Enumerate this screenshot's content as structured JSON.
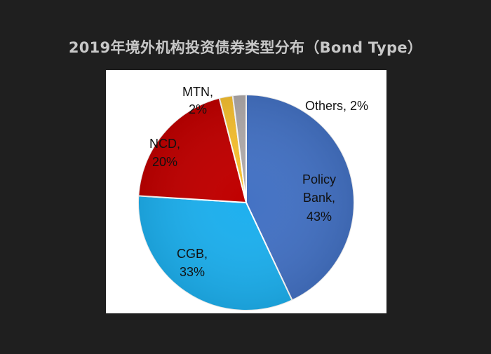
{
  "title": "2019年境外机构投资债券类型分布（Bond Type）",
  "chart_data": {
    "type": "pie",
    "title": "2019年境外机构投资债券类型分布（Bond Type）",
    "start_angle_deg": 0,
    "direction": "clockwise",
    "slices": [
      {
        "label": "Policy Bank",
        "value": 43,
        "pct_text": "43%",
        "color": "#4472C4"
      },
      {
        "label": "CGB",
        "value": 33,
        "pct_text": "33%",
        "color": "#1EB0EE"
      },
      {
        "label": "NCD",
        "value": 20,
        "pct_text": "20%",
        "color": "#C00000"
      },
      {
        "label": "MTN",
        "value": 2,
        "pct_text": "2%",
        "color": "#F7C131"
      },
      {
        "label": "Others",
        "value": 2,
        "pct_text": "2%",
        "color": "#B0ABAB"
      }
    ]
  }
}
